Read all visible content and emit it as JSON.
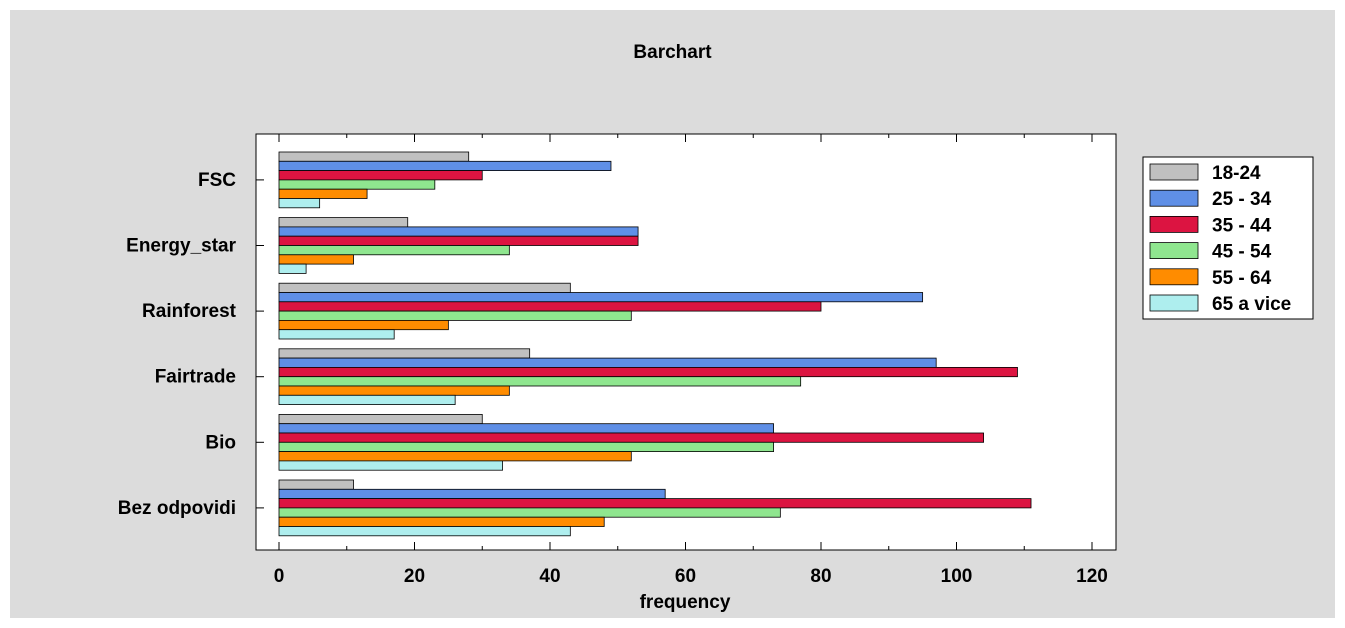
{
  "chart_data": {
    "type": "bar",
    "orientation": "horizontal",
    "title": "Barchart",
    "xlabel": "frequency",
    "ylabel": "",
    "xlim": [
      0,
      120
    ],
    "xticks": [
      "0",
      "20",
      "40",
      "60",
      "80",
      "100",
      "120"
    ],
    "categories": [
      "FSC",
      "Energy_star",
      "Rainforest",
      "Fairtrade",
      "Bio",
      "Bez odpovidi"
    ],
    "series": [
      {
        "name": "18-24",
        "color": "#c0c0c0",
        "values": [
          28,
          19,
          43,
          37,
          30,
          11
        ]
      },
      {
        "name": "25 - 34",
        "color": "#5f8fe6",
        "values": [
          49,
          53,
          95,
          97,
          73,
          57
        ]
      },
      {
        "name": "35 - 44",
        "color": "#dc1441",
        "values": [
          30,
          53,
          80,
          109,
          104,
          111
        ]
      },
      {
        "name": "45 - 54",
        "color": "#8fe68f",
        "values": [
          23,
          34,
          52,
          77,
          73,
          74
        ]
      },
      {
        "name": "55 - 64",
        "color": "#ff8c00",
        "values": [
          13,
          11,
          25,
          34,
          52,
          48
        ]
      },
      {
        "name": "65 a vice",
        "color": "#aeeeee",
        "values": [
          6,
          4,
          17,
          26,
          33,
          43
        ]
      }
    ],
    "legend": "right",
    "grid": false
  }
}
